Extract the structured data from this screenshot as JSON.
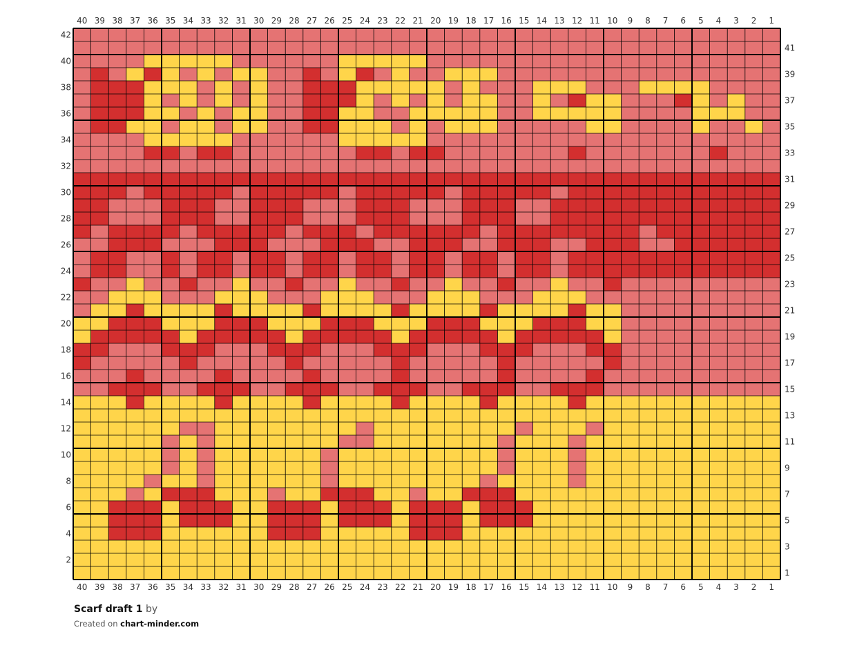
{
  "chart": {
    "title": "Scarf draft 1",
    "by_label": "by",
    "created_on_label": "Created on",
    "site": "chart-minder.com",
    "columns": 40,
    "rows": 42,
    "colors": {
      "Y": "#FFD54A",
      "P": "#E57373",
      "R": "#D32F2F",
      "grid": "#000000"
    },
    "grid_rows_top_to_bottom": [
      "PPPPPPPPPPPPPPPPPPPPPPPPPPPPPPPPPPPPPPPP",
      "PPPPPPPPPPPPPPPPPPPPPPPPPPPPPPPPPPPPPPPP",
      "PPPPYYYYYPPPPPPYYYYYPPPPPPPPPPPPPPPPPPPP",
      "PRPYRYPYPYYPPRPYRPYPPYYYPPPPPPPPPPPPPPPP",
      "PRRRYYYPYPYPPRRRYYYYYPYPPPYYYPPPYYYYPPPP",
      "PRRRYPYPYPYPPRRRYPYPYPYYPPYPRYYPPPRYPYPP",
      "PRRRYYPYPYYPPRRYYPPYYYYYPPYYYYYPPPPYYYPP",
      "PRRYYPYYPYYPPRRYYYPYPYYYPPPPPYYPPPPYPPYP",
      "PPPPYYYYYPPPPPPYYYYYPPPPPPPPPPPPPPPPPPPP",
      "PPPPRRPRRPPPPPPPRRPRRPPPPPPPRPPPPPPPRPPP",
      "PPPPPPPPPPPPPPPPPPPPPPPPPPPPPPPPPPPPPPPP",
      "RRRRRRRRRRRRRRRRRRRRRRRRRRRRRRRRRRRRRRRR",
      "RRRPRRRRRPRRRRRPRRRRRPRRRRRPRRRRRRRRRRRR",
      "RRPPPRRRPPRRRPPPRRRPPPRRRPPRRRRRRRRRRRRR",
      "RRPPPRRRPPRRRPPPRRRPPPRRRPPRRRRRRRRRRRRR",
      "RPRRRRPRRRRRPRRRPRRRRRRPRRRRRRRRPRRRRRRR",
      "PPRRRPPPRRRPPPRRRPPRRRPPRRRPPRRRPPRRRRRR",
      "PRRPPRPRRPRRPRRPRRPRRPRRPRRPRRRRRRRRRRRR",
      "PRRPPRPRRPRRPRRPRRPRRPRRPRRPRRRRRRRRRRRR",
      "RPPYPPRPPYPPRPPYPPRPPYPPRPPYPPRPPPPPPPPP",
      "PPYYYPPPYYYPPPYYYPPPYYYPPPYYYPPPPPPPPPPP",
      "PYYRYYYYRYYYYRYYYYRYYYYRYYYYRYYPPPPPPPPP",
      "YYRRRYYYRRRYYYRRRYYYRRRYYYRRRYYPPPPPPPPP",
      "YRRRRRYRRRRRYRRRRRYRRRRRYRRRRRYPPPPPPPPP",
      "RRPPPRRRPPPRRRPPPRRRPPPRRRPPPRRPPPPPPPPP",
      "RPPPPPRPPPPPRPPPPPRPPPPPRPPPPPRPPPPPPPPP",
      "PPPRPPPPRPPPPRPPPPRPPPPPRPPPPRPPPPPPPPPP",
      "PPRRRPPRRRPPRRRPPRRRPPRRRPPRRRPPPPPPPPPP",
      "YYYRYYYYRYYYYRYYYYRYYYYRYYYYRYYYYYYYYYYY",
      "YYYYYYYYYYYYYYYYYYYYYYYYYYYYYYYYYYYYYYYY",
      "YYYYYYPPYYYYYYYYPYYYYYYYYPYYYPYYYYYYYYYY",
      "YYYYYPYPYYYYYYYPPYYYYYYYPYYYPYYYYYYYYYYY",
      "YYYYYPYPYYYYYYPYYYYYYYYYPYYYPYYYYYYYYYYY",
      "YYYYYPYPYYYYYYPYYYYYYYYYPYYYPYYYYYYYYYYY",
      "YYYYPYYPYYYYYYPYYYYYYYYPYYYYPYYYYYYYYYYY",
      "YYYPYRRRYYYPYYRRRYYPYYRRRYYYYYYYYYYYYYYY",
      "YYRRRYRRRYYRRRYRRRYRRRYRRRYYYYYYYYYYYYYY",
      "YYRRRYRRRYYRRRYRRRYRRRYRRRYYYYYYYYYYYYYY",
      "YYRRRYYYYYYRRRYYYYYRRRYYYYYYYYYYYYYYYYYY",
      "YYYYYYYYYYYYYYYYYYYYYYYYYYYYYYYYYYYYYYYY",
      "YYYYYYYYYYYYYYYYYYYYYYYYYYYYYYYYYYYYYYYY",
      "YYYYYYYYYYYYYYYYYYYYYYYYYYYYYYYYYYYYYYYY"
    ]
  }
}
